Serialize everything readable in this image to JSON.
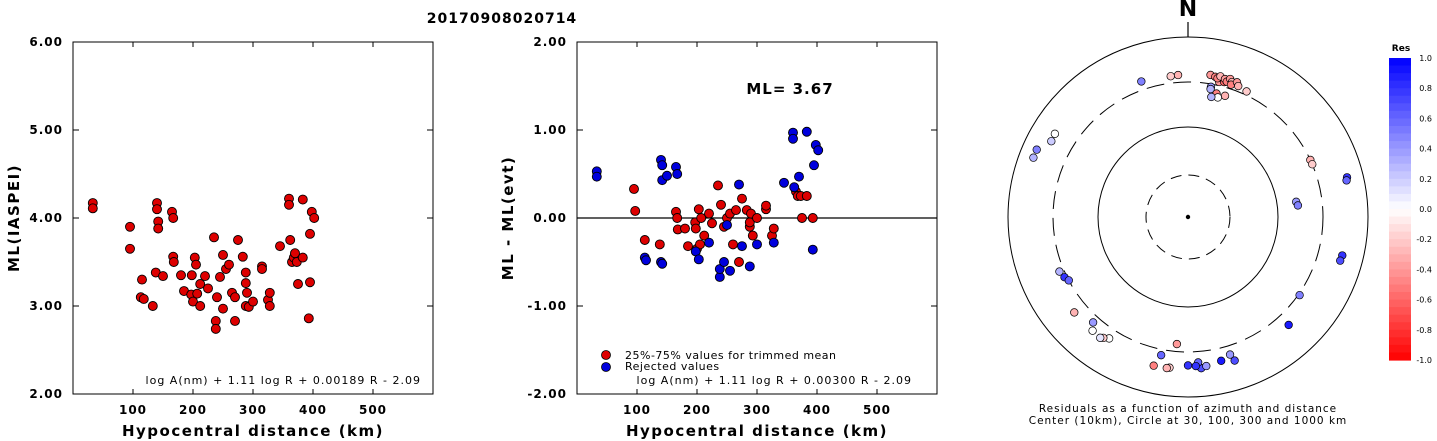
{
  "title": "20170908020714",
  "colors": {
    "red": "#dd0000",
    "blue": "#0000dd",
    "axis": "#000000"
  },
  "chart_data": [
    {
      "type": "scatter",
      "id": "left",
      "xlabel": "Hypocentral distance (km)",
      "ylabel": "ML(IASPEI)",
      "xlim": [
        0,
        600
      ],
      "ylim": [
        2.0,
        6.0
      ],
      "xticks": [
        "100",
        "200",
        "300",
        "400",
        "500"
      ],
      "xtick_values": [
        100,
        200,
        300,
        400,
        500
      ],
      "yticks": [
        "2.00",
        "3.00",
        "4.00",
        "5.00",
        "6.00"
      ],
      "ytick_values": [
        2,
        3,
        4,
        5,
        6
      ],
      "annotation": "log A(nm) + 1.11 log R + 0.00189 R - 2.09",
      "series": [
        {
          "color": "red",
          "points": [
            [
              33,
              4.17
            ],
            [
              33,
              4.11
            ],
            [
              95,
              3.9
            ],
            [
              95,
              3.65
            ],
            [
              113,
              3.1
            ],
            [
              115,
              3.3
            ],
            [
              118,
              3.08
            ],
            [
              133,
              3.0
            ],
            [
              138,
              3.38
            ],
            [
              140,
              4.17
            ],
            [
              140,
              4.1
            ],
            [
              142,
              3.96
            ],
            [
              142,
              3.88
            ],
            [
              150,
              3.34
            ],
            [
              165,
              4.07
            ],
            [
              167,
              4.0
            ],
            [
              167,
              3.56
            ],
            [
              168,
              3.5
            ],
            [
              180,
              3.35
            ],
            [
              185,
              3.17
            ],
            [
              197,
              3.13
            ],
            [
              198,
              3.35
            ],
            [
              200,
              3.05
            ],
            [
              203,
              3.55
            ],
            [
              205,
              3.47
            ],
            [
              207,
              3.14
            ],
            [
              212,
              3.0
            ],
            [
              212,
              3.25
            ],
            [
              220,
              3.34
            ],
            [
              225,
              3.2
            ],
            [
              235,
              3.78
            ],
            [
              238,
              2.83
            ],
            [
              238,
              2.74
            ],
            [
              240,
              3.1
            ],
            [
              245,
              3.33
            ],
            [
              250,
              3.58
            ],
            [
              250,
              2.97
            ],
            [
              255,
              3.42
            ],
            [
              260,
              3.47
            ],
            [
              265,
              3.15
            ],
            [
              270,
              2.83
            ],
            [
              270,
              3.1
            ],
            [
              275,
              3.75
            ],
            [
              283,
              3.56
            ],
            [
              288,
              3.38
            ],
            [
              288,
              3.26
            ],
            [
              290,
              3.15
            ],
            [
              288,
              3.0
            ],
            [
              293,
              2.99
            ],
            [
              300,
              3.05
            ],
            [
              315,
              3.45
            ],
            [
              315,
              3.42
            ],
            [
              325,
              3.07
            ],
            [
              328,
              3.0
            ],
            [
              328,
              3.15
            ],
            [
              345,
              3.68
            ],
            [
              360,
              4.22
            ],
            [
              360,
              4.15
            ],
            [
              362,
              3.75
            ],
            [
              365,
              3.5
            ],
            [
              368,
              3.55
            ],
            [
              370,
              3.6
            ],
            [
              373,
              3.5
            ],
            [
              375,
              3.25
            ],
            [
              383,
              4.21
            ],
            [
              383,
              3.55
            ],
            [
              393,
              2.86
            ],
            [
              395,
              3.27
            ],
            [
              395,
              3.82
            ],
            [
              398,
              4.07
            ],
            [
              402,
              4.0
            ]
          ]
        }
      ]
    },
    {
      "type": "scatter",
      "id": "middle",
      "xlabel": "Hypocentral distance (km)",
      "ylabel": "ML - ML(evt)",
      "xlim": [
        0,
        600
      ],
      "ylim": [
        -2.0,
        2.0
      ],
      "xticks": [
        "100",
        "200",
        "300",
        "400",
        "500"
      ],
      "xtick_values": [
        100,
        200,
        300,
        400,
        500
      ],
      "yticks": [
        "-2.00",
        "-1.00",
        "0.00",
        "1.00",
        "2.00"
      ],
      "ytick_values": [
        -2,
        -1,
        0,
        1,
        2
      ],
      "ml_label": "ML= 3.67",
      "annotation": "log A(nm) + 1.11 log R + 0.00300 R - 2.09",
      "legend": [
        "25%-75% values for trimmed mean",
        "Rejected values"
      ],
      "series": [
        {
          "name": "25%-75% values for trimmed mean",
          "color": "red",
          "points": [
            [
              95,
              0.33
            ],
            [
              97,
              0.08
            ],
            [
              113,
              -0.25
            ],
            [
              138,
              -0.3
            ],
            [
              165,
              0.07
            ],
            [
              167,
              0.0
            ],
            [
              168,
              -0.13
            ],
            [
              180,
              -0.12
            ],
            [
              185,
              -0.32
            ],
            [
              197,
              -0.05
            ],
            [
              198,
              -0.12
            ],
            [
              200,
              -0.35
            ],
            [
              203,
              0.1
            ],
            [
              205,
              -0.3
            ],
            [
              207,
              0.0
            ],
            [
              212,
              -0.2
            ],
            [
              220,
              0.05
            ],
            [
              225,
              -0.06
            ],
            [
              235,
              0.37
            ],
            [
              240,
              0.15
            ],
            [
              245,
              -0.1
            ],
            [
              250,
              0.0
            ],
            [
              255,
              0.05
            ],
            [
              260,
              -0.3
            ],
            [
              265,
              0.09
            ],
            [
              270,
              -0.5
            ],
            [
              275,
              0.22
            ],
            [
              283,
              0.09
            ],
            [
              288,
              -0.1
            ],
            [
              288,
              -0.05
            ],
            [
              290,
              0.05
            ],
            [
              293,
              -0.2
            ],
            [
              300,
              0.0
            ],
            [
              315,
              0.1
            ],
            [
              315,
              0.14
            ],
            [
              325,
              -0.2
            ],
            [
              328,
              -0.12
            ],
            [
              365,
              0.3
            ],
            [
              368,
              0.25
            ],
            [
              373,
              0.25
            ],
            [
              375,
              0.0
            ],
            [
              383,
              0.25
            ],
            [
              393,
              0.0
            ]
          ]
        },
        {
          "name": "Rejected values",
          "color": "blue",
          "points": [
            [
              33,
              0.53
            ],
            [
              33,
              0.47
            ],
            [
              113,
              -0.45
            ],
            [
              115,
              -0.48
            ],
            [
              140,
              -0.5
            ],
            [
              142,
              -0.52
            ],
            [
              140,
              0.66
            ],
            [
              142,
              0.6
            ],
            [
              142,
              0.43
            ],
            [
              150,
              0.48
            ],
            [
              165,
              0.58
            ],
            [
              167,
              0.5
            ],
            [
              198,
              -0.38
            ],
            [
              203,
              -0.47
            ],
            [
              220,
              -0.28
            ],
            [
              238,
              -0.67
            ],
            [
              238,
              -0.58
            ],
            [
              245,
              -0.5
            ],
            [
              250,
              -0.08
            ],
            [
              255,
              -0.6
            ],
            [
              270,
              0.38
            ],
            [
              275,
              -0.32
            ],
            [
              288,
              -0.55
            ],
            [
              300,
              -0.3
            ],
            [
              328,
              -0.28
            ],
            [
              345,
              0.4
            ],
            [
              360,
              0.97
            ],
            [
              360,
              0.9
            ],
            [
              362,
              0.35
            ],
            [
              370,
              0.47
            ],
            [
              383,
              0.98
            ],
            [
              393,
              -0.36
            ],
            [
              395,
              0.6
            ],
            [
              398,
              0.83
            ],
            [
              402,
              0.77
            ]
          ]
        }
      ]
    },
    {
      "type": "scatter",
      "id": "polar",
      "title": "N",
      "caption_line1": "Residuals as a function of azimuth and distance",
      "caption_line2": "Center (10km), Circle at 30, 100, 300 and 1000 km",
      "rings_km": [
        10,
        30,
        100,
        300,
        1000
      ],
      "colorbar": {
        "title": "Res",
        "ticks": [
          "1.0",
          "0.8",
          "0.6",
          "0.4",
          "0.2",
          "0.0",
          "-0.2",
          "-0.4",
          "-0.6",
          "-0.8",
          "-1.0"
        ],
        "tick_values": [
          1.0,
          0.8,
          0.6,
          0.4,
          0.2,
          0.0,
          -0.2,
          -0.4,
          -0.6,
          -0.8,
          -1.0
        ],
        "max_color": "#0000ff",
        "zero_color": "#ffffff",
        "min_color": "#ff0000"
      },
      "points": [
        {
          "az": 353,
          "dist_km": 360,
          "res": -0.2
        },
        {
          "az": 356,
          "dist_km": 365,
          "res": -0.3
        },
        {
          "az": 341,
          "dist_km": 375,
          "res": 0.5
        },
        {
          "az": 9,
          "dist_km": 380,
          "res": -0.4
        },
        {
          "az": 11,
          "dist_km": 370,
          "res": -0.5
        },
        {
          "az": 13,
          "dist_km": 330,
          "res": -0.4
        },
        {
          "az": 12,
          "dist_km": 360,
          "res": -0.5
        },
        {
          "az": 13,
          "dist_km": 385,
          "res": -0.3
        },
        {
          "az": 15,
          "dist_km": 340,
          "res": -0.6
        },
        {
          "az": 15,
          "dist_km": 370,
          "res": -0.4
        },
        {
          "az": 16,
          "dist_km": 350,
          "res": -0.5
        },
        {
          "az": 17,
          "dist_km": 385,
          "res": -0.4
        },
        {
          "az": 18,
          "dist_km": 360,
          "res": -0.3
        },
        {
          "az": 18,
          "dist_km": 335,
          "res": -0.5
        },
        {
          "az": 20,
          "dist_km": 375,
          "res": -0.4
        },
        {
          "az": 21,
          "dist_km": 345,
          "res": -0.3
        },
        {
          "az": 25,
          "dist_km": 330,
          "res": -0.2
        },
        {
          "az": 10,
          "dist_km": 280,
          "res": 0.4
        },
        {
          "az": 10,
          "dist_km": 265,
          "res": 0.3
        },
        {
          "az": 13,
          "dist_km": 245,
          "res": -0.5
        },
        {
          "az": 17,
          "dist_km": 245,
          "res": -0.3
        },
        {
          "az": 14,
          "dist_km": 225,
          "res": 0.0
        },
        {
          "az": 11,
          "dist_km": 220,
          "res": 0.3
        },
        {
          "az": 65,
          "dist_km": 300,
          "res": -0.3
        },
        {
          "az": 67,
          "dist_km": 300,
          "res": -0.2
        },
        {
          "az": 82,
          "dist_km": 160,
          "res": 0.4
        },
        {
          "az": 84,
          "dist_km": 165,
          "res": 0.5
        },
        {
          "az": 76,
          "dist_km": 650,
          "res": 0.8
        },
        {
          "az": 77,
          "dist_km": 630,
          "res": 0.6
        },
        {
          "az": 104,
          "dist_km": 570,
          "res": 0.8
        },
        {
          "az": 106,
          "dist_km": 560,
          "res": 0.7
        },
        {
          "az": 137,
          "dist_km": 420,
          "res": 0.9
        },
        {
          "az": 125,
          "dist_km": 310,
          "res": 0.5
        },
        {
          "az": 175,
          "dist_km": 470,
          "res": 0.7
        },
        {
          "az": 176,
          "dist_km": 400,
          "res": 0.6
        },
        {
          "az": 177,
          "dist_km": 440,
          "res": 0.8
        },
        {
          "az": 180,
          "dist_km": 430,
          "res": 0.8
        },
        {
          "az": 173,
          "dist_km": 450,
          "res": 0.4
        },
        {
          "az": 167,
          "dist_km": 420,
          "res": 0.9
        },
        {
          "az": 162,
          "dist_km": 460,
          "res": 0.7
        },
        {
          "az": 163,
          "dist_km": 380,
          "res": 0.4
        },
        {
          "az": 187,
          "dist_km": 470,
          "res": -0.2
        },
        {
          "az": 188,
          "dist_km": 480,
          "res": -0.3
        },
        {
          "az": 193,
          "dist_km": 480,
          "res": -0.5
        },
        {
          "az": 191,
          "dist_km": 350,
          "res": 0.6
        },
        {
          "az": 185,
          "dist_km": 250,
          "res": -0.4
        },
        {
          "az": 213,
          "dist_km": 390,
          "res": 0.0
        },
        {
          "az": 215,
          "dist_km": 420,
          "res": -0.2
        },
        {
          "az": 216,
          "dist_km": 440,
          "res": 0.1
        },
        {
          "az": 220,
          "dist_km": 430,
          "res": 0.0
        },
        {
          "az": 230,
          "dist_km": 430,
          "res": -0.3
        },
        {
          "az": 222,
          "dist_km": 360,
          "res": 0.4
        },
        {
          "az": 244,
          "dist_km": 320,
          "res": 0.8
        },
        {
          "az": 242,
          "dist_km": 300,
          "res": 0.6
        },
        {
          "az": 247,
          "dist_km": 340,
          "res": 0.3
        },
        {
          "az": 294,
          "dist_km": 680,
          "res": 0.5
        },
        {
          "az": 291,
          "dist_km": 680,
          "res": 0.3
        },
        {
          "az": 299,
          "dist_km": 530,
          "res": 0.2
        },
        {
          "az": 302,
          "dist_km": 540,
          "res": 0.0
        }
      ]
    }
  ]
}
